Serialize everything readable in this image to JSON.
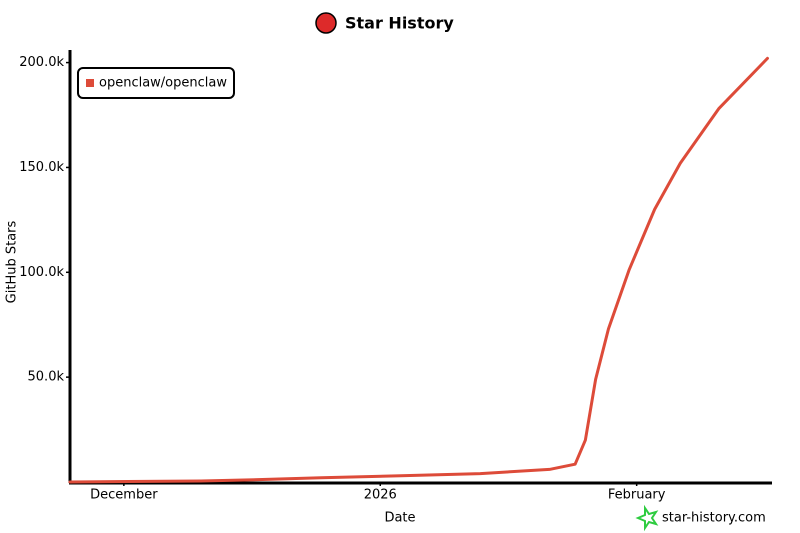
{
  "chart_data": {
    "type": "line",
    "title": "Star History",
    "xlabel": "Date",
    "ylabel": "GitHub Stars",
    "xlim": [
      -0.21,
      2.52
    ],
    "xticks": [
      {
        "value": 0,
        "label": "December"
      },
      {
        "value": 1,
        "label": "2026"
      },
      {
        "value": 2,
        "label": "February"
      }
    ],
    "ylim": [
      0,
      206000
    ],
    "yticks": [
      {
        "value": 50000,
        "label": "50.0k"
      },
      {
        "value": 100000,
        "label": "100.0k"
      },
      {
        "value": 150000,
        "label": "150.0k"
      },
      {
        "value": 200000,
        "label": "200.0k"
      }
    ],
    "x": [
      -0.21,
      0.3,
      0.49,
      0.77,
      1.08,
      1.39,
      1.66,
      1.76,
      1.8,
      1.84,
      1.89,
      1.97,
      2.07,
      2.17,
      2.32,
      2.51
    ],
    "series": [
      {
        "name": "openclaw/openclaw",
        "color": "#dd4b39",
        "values": [
          0,
          500,
          1000,
          2000,
          3000,
          4000,
          6000,
          8500,
          20000,
          49000,
          73000,
          101000,
          130000,
          152000,
          178000,
          202000
        ]
      }
    ],
    "legend": "top-left",
    "watermark": "star-history.com"
  }
}
